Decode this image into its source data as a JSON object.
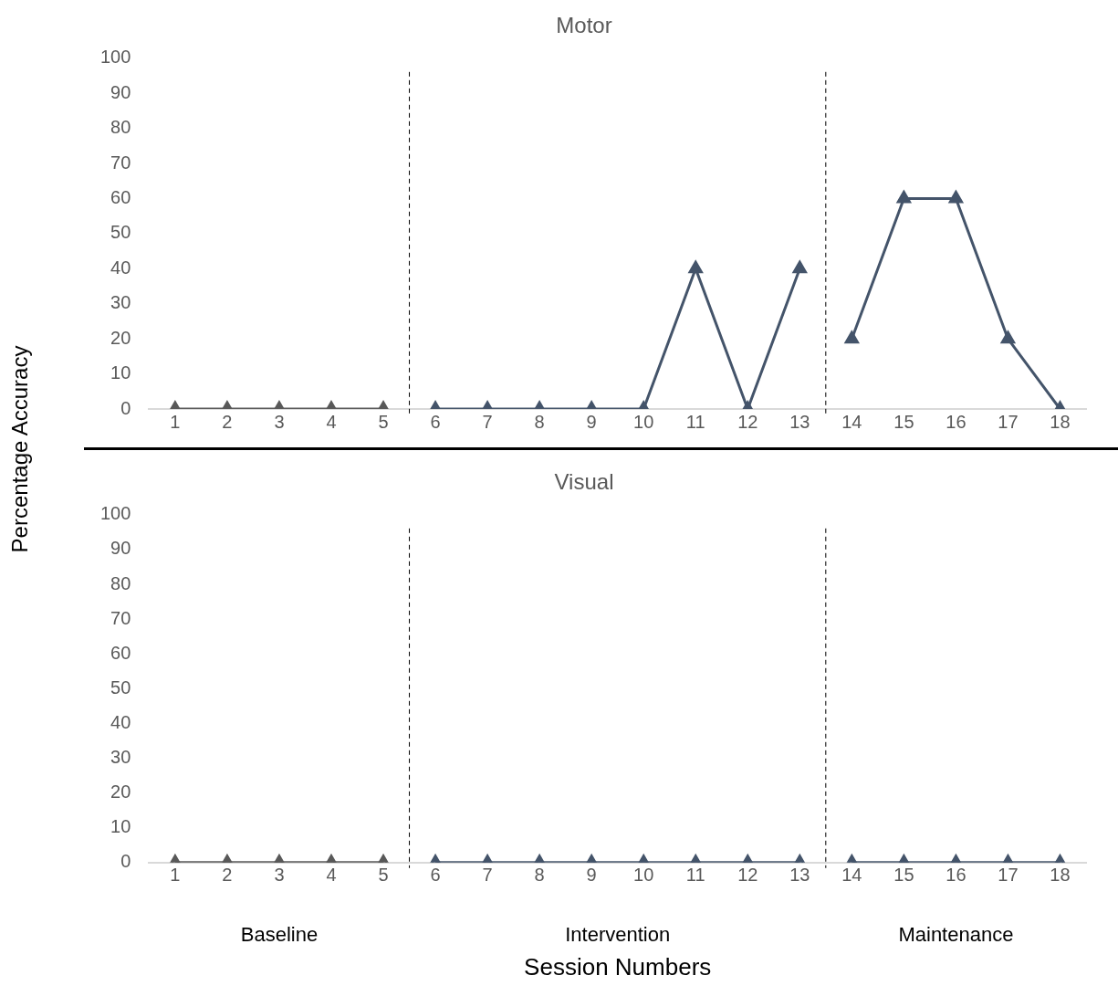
{
  "chart_data": [
    {
      "type": "line",
      "title": "Motor",
      "ylabel": "Percentage Accuracy",
      "x": [
        1,
        2,
        3,
        4,
        5,
        6,
        7,
        8,
        9,
        10,
        11,
        12,
        13,
        14,
        15,
        16,
        17,
        18
      ],
      "xlim": [
        0.5,
        18.5
      ],
      "xticks": [
        1,
        2,
        3,
        4,
        5,
        6,
        7,
        8,
        9,
        10,
        11,
        12,
        13,
        14,
        15,
        16,
        17,
        18
      ],
      "ylim": [
        0,
        100
      ],
      "yticks": [
        0,
        10,
        20,
        30,
        40,
        50,
        60,
        70,
        80,
        90,
        100
      ],
      "grid": false,
      "legend": false,
      "marker": "triangle",
      "line_style": "solid",
      "series": [
        {
          "color": "#595959",
          "values": [
            0,
            0,
            0,
            0,
            0,
            null,
            null,
            null,
            null,
            null,
            null,
            null,
            null,
            null,
            null,
            null,
            null,
            null
          ]
        },
        {
          "color": "#44546a",
          "values": [
            null,
            null,
            null,
            null,
            null,
            0,
            0,
            0,
            0,
            0,
            40,
            0,
            40,
            null,
            null,
            null,
            null,
            null
          ]
        },
        {
          "color": "#44546a",
          "values": [
            null,
            null,
            null,
            null,
            null,
            null,
            null,
            null,
            null,
            null,
            null,
            null,
            null,
            20,
            60,
            60,
            20,
            0
          ]
        }
      ],
      "ref_lines": [
        {
          "axis": "x",
          "value": 5.5,
          "color": "#000000",
          "line_style": "dashed"
        },
        {
          "axis": "x",
          "value": 13.5,
          "color": "#000000",
          "line_style": "dashed"
        }
      ]
    },
    {
      "type": "line",
      "title": "Visual",
      "xlabel": "Session Numbers",
      "x": [
        1,
        2,
        3,
        4,
        5,
        6,
        7,
        8,
        9,
        10,
        11,
        12,
        13,
        14,
        15,
        16,
        17,
        18
      ],
      "xlim": [
        0.5,
        18.5
      ],
      "xticks": [
        1,
        2,
        3,
        4,
        5,
        6,
        7,
        8,
        9,
        10,
        11,
        12,
        13,
        14,
        15,
        16,
        17,
        18
      ],
      "ylim": [
        0,
        100
      ],
      "yticks": [
        0,
        10,
        20,
        30,
        40,
        50,
        60,
        70,
        80,
        90,
        100
      ],
      "grid": false,
      "legend": false,
      "marker": "triangle",
      "line_style": "solid",
      "series": [
        {
          "color": "#595959",
          "values": [
            0,
            0,
            0,
            0,
            0,
            null,
            null,
            null,
            null,
            null,
            null,
            null,
            null,
            null,
            null,
            null,
            null,
            null
          ]
        },
        {
          "color": "#44546a",
          "values": [
            null,
            null,
            null,
            null,
            null,
            0,
            0,
            0,
            0,
            0,
            0,
            0,
            0,
            null,
            null,
            null,
            null,
            null
          ]
        },
        {
          "color": "#44546a",
          "values": [
            null,
            null,
            null,
            null,
            null,
            null,
            null,
            null,
            null,
            null,
            null,
            null,
            null,
            0,
            0,
            0,
            0,
            0
          ]
        }
      ],
      "ref_lines": [
        {
          "axis": "x",
          "value": 5.5,
          "color": "#000000",
          "line_style": "dashed"
        },
        {
          "axis": "x",
          "value": 13.5,
          "color": "#000000",
          "line_style": "dashed"
        }
      ],
      "annotations": [
        "Baseline",
        "Intervention",
        "Maintenance"
      ]
    }
  ]
}
